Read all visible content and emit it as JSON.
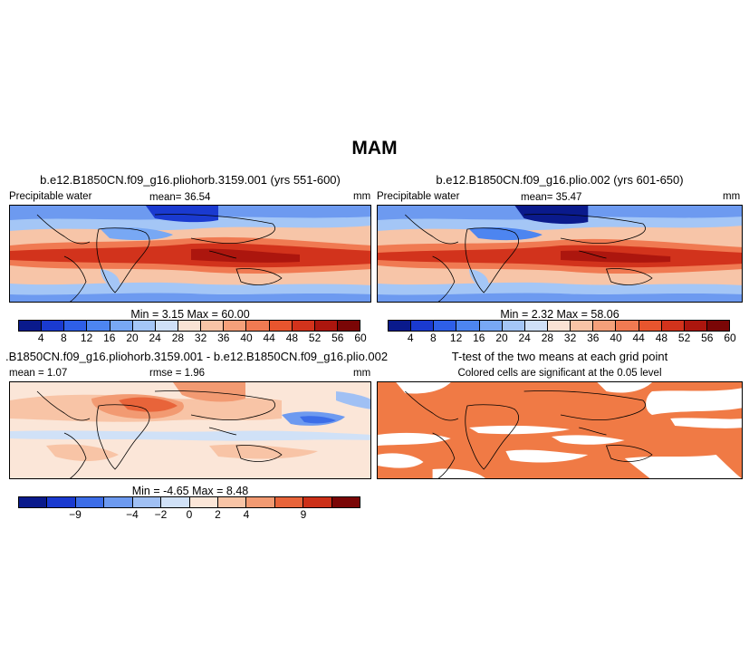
{
  "page": {
    "title": "MAM"
  },
  "panels": {
    "p1": {
      "title": "b.e12.B1850CN.f09_g16.pliohorb.3159.001 (yrs 551-600)",
      "left_label": "Precipitable water",
      "mean": "mean=   36.54",
      "units": "mm",
      "minmax": "Min =     3.15  Max =   60.00"
    },
    "p2": {
      "title": "b.e12.B1850CN.f09_g16.plio.002 (yrs 601-650)",
      "left_label": "Precipitable water",
      "mean": "mean=   35.47",
      "units": "mm",
      "minmax": "Min =     2.32  Max =   58.06"
    },
    "p3": {
      "title": ".B1850CN.f09_g16.pliohorb.3159.001 - b.e12.B1850CN.f09_g16.plio.002",
      "left_label": "mean =    1.07",
      "mean": "rmse =    1.96",
      "units": "mm",
      "minmax": "Min =   -4.65  Max =    8.48"
    },
    "p4": {
      "title": "T-test of the two means at each grid point",
      "subtitle": "Colored cells are significant at the 0.05 level"
    }
  },
  "colorbars": {
    "abs": {
      "colors": [
        "#0a1a8c",
        "#1a3ad0",
        "#2e5fe8",
        "#4d85f0",
        "#78a8f4",
        "#a4c6f6",
        "#cfe0f7",
        "#f9e3d4",
        "#f8c4a6",
        "#f5a07a",
        "#f07a52",
        "#e8552e",
        "#d2331c",
        "#ac160e",
        "#7a0606"
      ],
      "labels": [
        "4",
        "8",
        "12",
        "16",
        "20",
        "24",
        "28",
        "32",
        "36",
        "40",
        "44",
        "48",
        "52",
        "56",
        "60"
      ]
    },
    "diff": {
      "colors": [
        "#0a1a8c",
        "#1a3ad0",
        "#3c6de8",
        "#6d9af0",
        "#a0c0f4",
        "#d0e1f7",
        "#fbe6d8",
        "#f8c4a6",
        "#f29a72",
        "#e8643a",
        "#cc3018",
        "#7a0606"
      ],
      "labels": [
        "-9",
        "-4",
        "-2",
        "0",
        "2",
        "4",
        "9"
      ]
    }
  },
  "chart_data": [
    {
      "type": "heatmap",
      "title": "b.e12.B1850CN.f09_g16.pliohorb.3159.001 (yrs 551-600)",
      "variable": "Precipitable water",
      "units": "mm",
      "mean": 36.54,
      "min": 3.15,
      "max": 60.0,
      "levels": [
        4,
        8,
        12,
        16,
        20,
        24,
        28,
        32,
        36,
        40,
        44,
        48,
        52,
        56,
        60
      ]
    },
    {
      "type": "heatmap",
      "title": "b.e12.B1850CN.f09_g16.plio.002 (yrs 601-650)",
      "variable": "Precipitable water",
      "units": "mm",
      "mean": 35.47,
      "min": 2.32,
      "max": 58.06,
      "levels": [
        4,
        8,
        12,
        16,
        20,
        24,
        28,
        32,
        36,
        40,
        44,
        48,
        52,
        56,
        60
      ]
    },
    {
      "type": "heatmap",
      "title": ".B1850CN.f09_g16.pliohorb.3159.001 - b.e12.B1850CN.f09_g16.plio.002",
      "units": "mm",
      "mean": 1.07,
      "rmse": 1.96,
      "min": -4.65,
      "max": 8.48,
      "levels": [
        -9,
        -4,
        -2,
        0,
        2,
        4,
        9
      ]
    },
    {
      "type": "heatmap",
      "title": "T-test of the two means at each grid point",
      "subtitle": "Colored cells are significant at the 0.05 level",
      "significance_level": 0.05
    }
  ]
}
